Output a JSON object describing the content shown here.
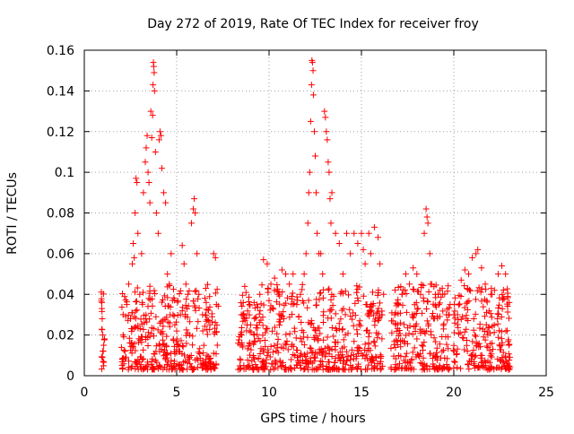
{
  "chart_data": {
    "type": "scatter",
    "title": "Day 272 of 2019, Rate Of TEC Index for receiver froy",
    "xlabel": "GPS time / hours",
    "ylabel": "ROTI / TECUs",
    "xlim": [
      0,
      25
    ],
    "ylim": [
      0,
      0.16
    ],
    "x_ticks": [
      0,
      5,
      10,
      15,
      20,
      25
    ],
    "y_ticks": [
      0,
      0.02,
      0.04,
      0.06,
      0.08,
      0.1,
      0.12,
      0.14,
      0.16
    ],
    "x_tick_labels": [
      "0",
      "5",
      "10",
      "15",
      "20",
      "25"
    ],
    "y_tick_labels": [
      "0",
      "0.02",
      "0.04",
      "0.06",
      "0.08",
      "0.1",
      "0.12",
      "0.14",
      "0.16"
    ],
    "grid": true,
    "grid_style": "dotted",
    "marker": "plus",
    "series": [
      {
        "color": "#ff0000",
        "points": [
          [
            0.95,
            0.036
          ],
          [
            0.95,
            0.033
          ],
          [
            0.97,
            0.028
          ],
          [
            1.0,
            0.02
          ],
          [
            1.0,
            0.012
          ],
          [
            1.02,
            0.007
          ],
          [
            1.05,
            0.015
          ],
          [
            0.98,
            0.009
          ],
          [
            2.1,
            0.02
          ],
          [
            2.2,
            0.012
          ],
          [
            2.3,
            0.035
          ],
          [
            2.4,
            0.045
          ],
          [
            2.5,
            0.028
          ],
          [
            2.6,
            0.055
          ],
          [
            2.65,
            0.065
          ],
          [
            2.7,
            0.058
          ],
          [
            2.75,
            0.08
          ],
          [
            2.8,
            0.097
          ],
          [
            2.85,
            0.095
          ],
          [
            2.9,
            0.07
          ],
          [
            3.0,
            0.04
          ],
          [
            3.1,
            0.06
          ],
          [
            3.2,
            0.09
          ],
          [
            3.3,
            0.105
          ],
          [
            3.35,
            0.112
          ],
          [
            3.4,
            0.118
          ],
          [
            3.45,
            0.1
          ],
          [
            3.5,
            0.095
          ],
          [
            3.55,
            0.085
          ],
          [
            3.6,
            0.13
          ],
          [
            3.65,
            0.117
          ],
          [
            3.7,
            0.128
          ],
          [
            3.72,
            0.143
          ],
          [
            3.74,
            0.154
          ],
          [
            3.76,
            0.152
          ],
          [
            3.78,
            0.149
          ],
          [
            3.8,
            0.14
          ],
          [
            3.85,
            0.11
          ],
          [
            3.9,
            0.08
          ],
          [
            4.0,
            0.07
          ],
          [
            4.05,
            0.116
          ],
          [
            4.1,
            0.12
          ],
          [
            4.15,
            0.118
          ],
          [
            4.2,
            0.102
          ],
          [
            4.3,
            0.09
          ],
          [
            4.4,
            0.085
          ],
          [
            4.5,
            0.05
          ],
          [
            4.6,
            0.045
          ],
          [
            4.7,
            0.06
          ],
          [
            4.8,
            0.03
          ],
          [
            4.9,
            0.025
          ],
          [
            5.0,
            0.022
          ],
          [
            5.2,
            0.03
          ],
          [
            5.3,
            0.064
          ],
          [
            5.4,
            0.055
          ],
          [
            5.5,
            0.045
          ],
          [
            5.6,
            0.04
          ],
          [
            5.7,
            0.02
          ],
          [
            5.8,
            0.075
          ],
          [
            5.9,
            0.082
          ],
          [
            5.95,
            0.087
          ],
          [
            6.0,
            0.08
          ],
          [
            6.1,
            0.06
          ],
          [
            6.2,
            0.04
          ],
          [
            6.4,
            0.03
          ],
          [
            6.6,
            0.036
          ],
          [
            6.8,
            0.025
          ],
          [
            7.0,
            0.06
          ],
          [
            7.1,
            0.058
          ],
          [
            7.15,
            0.035
          ],
          [
            7.2,
            0.015
          ],
          [
            8.5,
            0.03
          ],
          [
            8.7,
            0.027
          ],
          [
            9.0,
            0.025
          ],
          [
            9.2,
            0.02
          ],
          [
            9.5,
            0.04
          ],
          [
            9.7,
            0.057
          ],
          [
            9.9,
            0.055
          ],
          [
            10.1,
            0.045
          ],
          [
            10.3,
            0.048
          ],
          [
            10.5,
            0.04
          ],
          [
            10.7,
            0.052
          ],
          [
            10.9,
            0.05
          ],
          [
            11.1,
            0.045
          ],
          [
            11.3,
            0.05
          ],
          [
            11.5,
            0.035
          ],
          [
            11.7,
            0.04
          ],
          [
            11.9,
            0.05
          ],
          [
            12.0,
            0.06
          ],
          [
            12.1,
            0.075
          ],
          [
            12.15,
            0.09
          ],
          [
            12.2,
            0.1
          ],
          [
            12.25,
            0.125
          ],
          [
            12.3,
            0.143
          ],
          [
            12.32,
            0.155
          ],
          [
            12.35,
            0.154
          ],
          [
            12.38,
            0.15
          ],
          [
            12.4,
            0.138
          ],
          [
            12.45,
            0.12
          ],
          [
            12.5,
            0.108
          ],
          [
            12.55,
            0.09
          ],
          [
            12.6,
            0.07
          ],
          [
            12.7,
            0.06
          ],
          [
            12.8,
            0.06
          ],
          [
            12.9,
            0.05
          ],
          [
            13.0,
            0.13
          ],
          [
            13.05,
            0.127
          ],
          [
            13.1,
            0.12
          ],
          [
            13.15,
            0.116
          ],
          [
            13.2,
            0.105
          ],
          [
            13.25,
            0.1
          ],
          [
            13.3,
            0.087
          ],
          [
            13.35,
            0.075
          ],
          [
            13.4,
            0.09
          ],
          [
            13.6,
            0.07
          ],
          [
            13.8,
            0.065
          ],
          [
            14.0,
            0.05
          ],
          [
            14.2,
            0.07
          ],
          [
            14.4,
            0.06
          ],
          [
            14.6,
            0.07
          ],
          [
            14.8,
            0.065
          ],
          [
            15.0,
            0.07
          ],
          [
            15.1,
            0.062
          ],
          [
            15.2,
            0.055
          ],
          [
            15.4,
            0.07
          ],
          [
            15.5,
            0.06
          ],
          [
            15.7,
            0.073
          ],
          [
            15.9,
            0.068
          ],
          [
            16.0,
            0.055
          ],
          [
            16.1,
            0.03
          ],
          [
            16.2,
            0.04
          ],
          [
            16.8,
            0.03
          ],
          [
            17.0,
            0.035
          ],
          [
            17.2,
            0.04
          ],
          [
            17.4,
            0.05
          ],
          [
            17.6,
            0.045
          ],
          [
            17.8,
            0.053
          ],
          [
            18.0,
            0.05
          ],
          [
            18.2,
            0.04
          ],
          [
            18.4,
            0.07
          ],
          [
            18.5,
            0.082
          ],
          [
            18.55,
            0.078
          ],
          [
            18.6,
            0.075
          ],
          [
            18.7,
            0.06
          ],
          [
            18.8,
            0.045
          ],
          [
            19.0,
            0.04
          ],
          [
            19.2,
            0.035
          ],
          [
            19.4,
            0.04
          ],
          [
            19.6,
            0.03
          ],
          [
            19.8,
            0.035
          ],
          [
            20.0,
            0.03
          ],
          [
            20.2,
            0.03
          ],
          [
            20.4,
            0.047
          ],
          [
            20.6,
            0.052
          ],
          [
            20.8,
            0.05
          ],
          [
            21.0,
            0.058
          ],
          [
            21.2,
            0.06
          ],
          [
            21.3,
            0.062
          ],
          [
            21.5,
            0.053
          ],
          [
            21.7,
            0.045
          ],
          [
            22.0,
            0.04
          ],
          [
            22.2,
            0.042
          ],
          [
            22.4,
            0.05
          ],
          [
            22.6,
            0.054
          ],
          [
            22.8,
            0.05
          ],
          [
            23.0,
            0.036
          ]
        ]
      }
    ]
  }
}
